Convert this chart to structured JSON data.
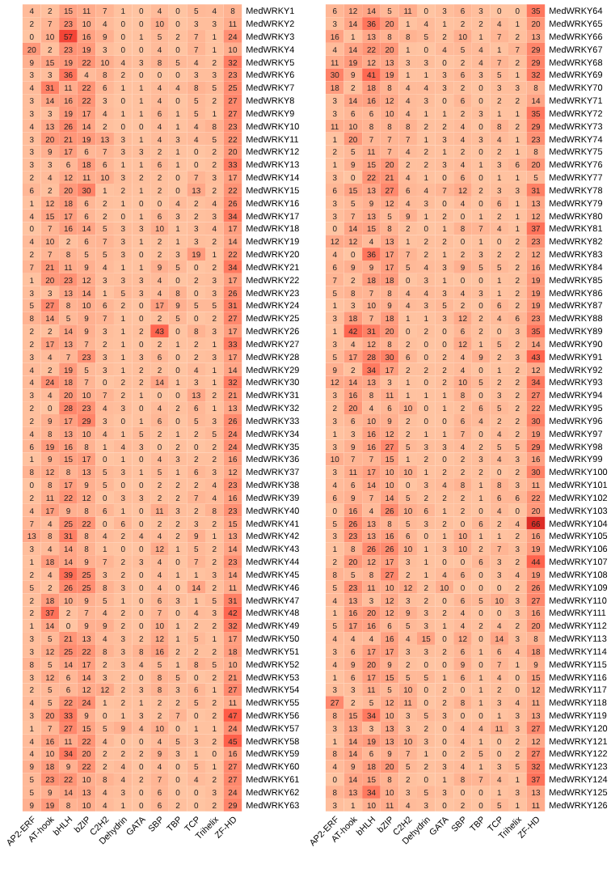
{
  "chart_data": [
    {
      "type": "heatmap",
      "data_labels": true,
      "color": "#de2d26",
      "categories": [
        "AP2-ERF",
        "AT-hook",
        "bHLH",
        "bZIP",
        "C2H2",
        "Dehydrin",
        "GATA",
        "SBP",
        "TBP",
        "TCP",
        "Trihelix",
        "ZF-HD"
      ],
      "y_categories": [
        "MedWRKY1",
        "MedWRKY2",
        "MedWRKY3",
        "MedWRKY4",
        "MedWRKY5",
        "MedWRKY6",
        "MedWRKY7",
        "MedWRKY8",
        "MedWRKY9",
        "MedWRKY10",
        "MedWRKY11",
        "MedWRKY12",
        "MedWRKY13",
        "MedWRKY14",
        "MedWRKY15",
        "MedWRKY16",
        "MedWRKY17",
        "MedWRKY18",
        "MedWRKY19",
        "MedWRKY20",
        "MedWRKY21",
        "MedWRKY22",
        "MedWRKY23",
        "MedWRKY24",
        "MedWRKY25",
        "MedWRKY26",
        "MedWRKY27",
        "MedWRKY28",
        "MedWRKY29",
        "MedWRKY30",
        "MedWRKY31",
        "MedWRKY32",
        "MedWRKY33",
        "MedWRKY34",
        "MedWRKY35",
        "MedWRKY36",
        "MedWRKY37",
        "MedWRKY38",
        "MedWRKY39",
        "MedWRKY40",
        "MedWRKY41",
        "MedWRKY42",
        "MedWRKY43",
        "MedWRKY44",
        "MedWRKY45",
        "MedWRKY46",
        "MedWRKY47",
        "MedWRKY48",
        "MedWRKY49",
        "MedWRKY50",
        "MedWRKY51",
        "MedWRKY52",
        "MedWRKY53",
        "MedWRKY54",
        "MedWRKY55",
        "MedWRKY56",
        "MedWRKY57",
        "MedWRKY58",
        "MedWRKY59",
        "MedWRKY60",
        "MedWRKY61",
        "MedWRKY62",
        "MedWRKY63"
      ],
      "cells": [
        [
          4,
          2,
          15,
          11,
          7,
          1,
          0,
          4,
          0,
          5,
          4,
          8
        ],
        [
          2,
          7,
          23,
          10,
          4,
          0,
          0,
          10,
          0,
          3,
          3,
          11
        ],
        [
          0,
          10,
          57,
          16,
          9,
          0,
          1,
          5,
          2,
          7,
          1,
          24
        ],
        [
          20,
          2,
          23,
          19,
          3,
          0,
          0,
          4,
          0,
          7,
          1,
          10
        ],
        [
          9,
          15,
          19,
          22,
          10,
          4,
          3,
          8,
          5,
          4,
          2,
          32
        ],
        [
          3,
          3,
          36,
          4,
          8,
          2,
          0,
          0,
          0,
          3,
          3,
          23
        ],
        [
          4,
          31,
          11,
          22,
          6,
          1,
          1,
          4,
          4,
          8,
          5,
          25
        ],
        [
          3,
          14,
          16,
          22,
          3,
          0,
          1,
          4,
          0,
          5,
          2,
          27
        ],
        [
          3,
          3,
          19,
          17,
          4,
          1,
          1,
          6,
          1,
          5,
          1,
          27
        ],
        [
          4,
          13,
          26,
          14,
          2,
          0,
          0,
          4,
          1,
          4,
          8,
          23
        ],
        [
          3,
          20,
          21,
          19,
          13,
          3,
          1,
          4,
          3,
          4,
          5,
          22
        ],
        [
          3,
          9,
          17,
          6,
          7,
          3,
          3,
          2,
          1,
          0,
          2,
          20
        ],
        [
          3,
          3,
          6,
          18,
          6,
          1,
          1,
          6,
          1,
          0,
          2,
          33
        ],
        [
          2,
          4,
          12,
          11,
          10,
          3,
          2,
          2,
          0,
          7,
          3,
          17
        ],
        [
          6,
          2,
          20,
          30,
          1,
          2,
          1,
          2,
          0,
          13,
          2,
          22
        ],
        [
          1,
          12,
          18,
          6,
          2,
          1,
          0,
          0,
          4,
          2,
          4,
          26
        ],
        [
          4,
          15,
          17,
          6,
          2,
          0,
          1,
          6,
          3,
          2,
          3,
          34
        ],
        [
          0,
          7,
          16,
          14,
          5,
          3,
          3,
          10,
          1,
          3,
          4,
          17
        ],
        [
          4,
          10,
          2,
          6,
          7,
          3,
          1,
          2,
          1,
          3,
          2,
          14
        ],
        [
          2,
          7,
          8,
          5,
          5,
          3,
          0,
          2,
          3,
          19,
          1,
          22
        ],
        [
          7,
          21,
          11,
          9,
          4,
          1,
          1,
          9,
          5,
          0,
          2,
          34
        ],
        [
          1,
          20,
          23,
          12,
          3,
          3,
          3,
          4,
          0,
          2,
          3,
          17
        ],
        [
          3,
          3,
          13,
          14,
          1,
          5,
          3,
          4,
          8,
          0,
          3,
          26
        ],
        [
          5,
          27,
          8,
          10,
          6,
          2,
          0,
          17,
          9,
          5,
          5,
          31
        ],
        [
          8,
          14,
          5,
          9,
          7,
          1,
          0,
          2,
          5,
          0,
          2,
          27
        ],
        [
          2,
          2,
          14,
          9,
          3,
          1,
          2,
          43,
          0,
          8,
          3,
          17
        ],
        [
          2,
          17,
          13,
          7,
          2,
          1,
          0,
          2,
          1,
          2,
          1,
          33
        ],
        [
          3,
          4,
          7,
          23,
          3,
          1,
          3,
          6,
          0,
          2,
          3,
          17
        ],
        [
          4,
          2,
          19,
          5,
          3,
          1,
          2,
          2,
          0,
          4,
          1,
          14
        ],
        [
          4,
          24,
          18,
          7,
          0,
          2,
          2,
          14,
          1,
          3,
          1,
          32
        ],
        [
          3,
          4,
          20,
          10,
          7,
          2,
          1,
          0,
          0,
          13,
          2,
          21
        ],
        [
          2,
          0,
          28,
          23,
          4,
          3,
          0,
          4,
          2,
          6,
          1,
          13
        ],
        [
          2,
          9,
          17,
          29,
          3,
          0,
          1,
          6,
          0,
          5,
          3,
          26
        ],
        [
          4,
          8,
          13,
          10,
          4,
          1,
          5,
          2,
          1,
          2,
          5,
          24
        ],
        [
          6,
          19,
          16,
          8,
          1,
          4,
          3,
          0,
          2,
          0,
          2,
          24
        ],
        [
          1,
          9,
          15,
          17,
          0,
          1,
          0,
          4,
          3,
          2,
          2,
          16
        ],
        [
          8,
          12,
          8,
          13,
          5,
          3,
          1,
          5,
          1,
          6,
          3,
          12
        ],
        [
          0,
          8,
          17,
          9,
          5,
          0,
          0,
          2,
          2,
          2,
          4,
          23
        ],
        [
          2,
          11,
          22,
          12,
          0,
          3,
          3,
          2,
          2,
          7,
          4,
          16
        ],
        [
          4,
          17,
          9,
          8,
          6,
          1,
          0,
          11,
          3,
          2,
          8,
          23
        ],
        [
          7,
          4,
          25,
          22,
          0,
          6,
          0,
          2,
          2,
          3,
          2,
          15
        ],
        [
          13,
          8,
          31,
          8,
          4,
          2,
          4,
          4,
          2,
          9,
          1,
          13
        ],
        [
          3,
          4,
          14,
          8,
          1,
          0,
          0,
          12,
          1,
          5,
          2,
          14
        ],
        [
          1,
          18,
          14,
          9,
          7,
          2,
          3,
          4,
          0,
          7,
          2,
          23
        ],
        [
          2,
          4,
          39,
          25,
          3,
          2,
          0,
          4,
          1,
          1,
          3,
          14
        ],
        [
          5,
          2,
          26,
          25,
          8,
          3,
          0,
          4,
          0,
          14,
          2,
          11
        ],
        [
          2,
          18,
          10,
          9,
          5,
          1,
          0,
          6,
          3,
          1,
          5,
          31
        ],
        [
          2,
          37,
          2,
          7,
          4,
          2,
          0,
          7,
          0,
          4,
          3,
          42
        ],
        [
          1,
          14,
          0,
          9,
          9,
          2,
          0,
          10,
          1,
          2,
          2,
          32
        ],
        [
          3,
          5,
          21,
          13,
          4,
          3,
          2,
          12,
          1,
          5,
          1,
          17
        ],
        [
          3,
          12,
          25,
          22,
          8,
          3,
          8,
          16,
          2,
          2,
          2,
          18
        ],
        [
          8,
          5,
          14,
          17,
          2,
          3,
          4,
          5,
          1,
          8,
          5,
          10
        ],
        [
          3,
          12,
          6,
          14,
          3,
          2,
          0,
          8,
          5,
          0,
          2,
          21
        ],
        [
          2,
          5,
          6,
          12,
          12,
          2,
          3,
          8,
          3,
          6,
          1,
          27
        ],
        [
          4,
          5,
          22,
          24,
          1,
          2,
          1,
          2,
          2,
          5,
          2,
          11
        ],
        [
          3,
          20,
          33,
          9,
          0,
          1,
          3,
          2,
          7,
          0,
          2,
          47
        ],
        [
          1,
          7,
          27,
          15,
          5,
          9,
          4,
          10,
          0,
          1,
          1,
          24
        ],
        [
          4,
          16,
          11,
          22,
          4,
          0,
          0,
          4,
          5,
          3,
          2,
          45
        ],
        [
          4,
          10,
          34,
          20,
          2,
          2,
          2,
          9,
          3,
          1,
          0,
          16
        ],
        [
          9,
          18,
          9,
          22,
          2,
          4,
          0,
          4,
          0,
          5,
          1,
          27
        ],
        [
          5,
          23,
          22,
          10,
          8,
          4,
          2,
          7,
          0,
          4,
          2,
          27
        ],
        [
          5,
          9,
          14,
          13,
          4,
          3,
          0,
          6,
          0,
          0,
          3,
          24
        ],
        [
          9,
          19,
          8,
          10,
          4,
          1,
          0,
          6,
          2,
          0,
          2,
          29
        ]
      ]
    },
    {
      "type": "heatmap",
      "data_labels": true,
      "color": "#de2d26",
      "categories": [
        "AP2-ERF",
        "AT-hook",
        "bHLH",
        "bZIP",
        "C2H2",
        "Dehydrin",
        "GATA",
        "SBP",
        "TBP",
        "TCP",
        "Trihelix",
        "ZF-HD"
      ],
      "y_categories": [
        "MedWRKY64",
        "MedWRKY65",
        "MedWRKY66",
        "MedWRKY67",
        "MedWRKY68",
        "MedWRKY69",
        "MedWRKY70",
        "MedWRKY71",
        "MedWRKY72",
        "MedWRKY73",
        "MedWRKY74",
        "MedWRKY75",
        "MedWRKY76",
        "MedWRKY77",
        "MedWRKY78",
        "MedWRKY79",
        "MedWRKY80",
        "MedWRKY81",
        "MedWRKY82",
        "MedWRKY83",
        "MedWRKY84",
        "MedWRKY85",
        "MedWRKY86",
        "MedWRKY87",
        "MedWRKY88",
        "MedWRKY89",
        "MedWRKY90",
        "MedWRKY91",
        "MedWRKY92",
        "MedWRKY93",
        "MedWRKY94",
        "MedWRKY95",
        "MedWRKY96",
        "MedWRKY97",
        "MedWRKY98",
        "MedWRKY99",
        "MedWRKY100",
        "MedWRKY101",
        "MedWRKY102",
        "MedWRKY103",
        "MedWRKY104",
        "MedWRKY105",
        "MedWRKY106",
        "MedWRKY107",
        "MedWRKY108",
        "MedWRKY109",
        "MedWRKY110",
        "MedWRKY111",
        "MedWRKY112",
        "MedWRKY113",
        "MedWRKY114",
        "MedWRKY115",
        "MedWRKY116",
        "MedWRKY117",
        "MedWRKY118",
        "MedWRKY119",
        "MedWRKY120",
        "MedWRKY121",
        "MedWRKY122",
        "MedWRKY123",
        "MedWRKY124",
        "MedWRKY125",
        "MedWRKY126"
      ],
      "cells": [
        [
          6,
          12,
          14,
          5,
          11,
          0,
          3,
          6,
          3,
          0,
          0,
          35
        ],
        [
          3,
          14,
          36,
          20,
          1,
          4,
          1,
          2,
          2,
          4,
          1,
          20
        ],
        [
          16,
          1,
          13,
          8,
          8,
          5,
          2,
          10,
          1,
          7,
          2,
          13
        ],
        [
          4,
          14,
          22,
          20,
          1,
          0,
          4,
          5,
          4,
          1,
          7,
          29
        ],
        [
          11,
          19,
          12,
          13,
          3,
          3,
          0,
          2,
          4,
          7,
          2,
          29
        ],
        [
          30,
          9,
          41,
          19,
          1,
          1,
          3,
          6,
          3,
          5,
          1,
          32
        ],
        [
          18,
          2,
          18,
          8,
          4,
          4,
          3,
          2,
          0,
          3,
          3,
          8
        ],
        [
          3,
          14,
          16,
          12,
          4,
          3,
          0,
          6,
          0,
          2,
          2,
          14
        ],
        [
          3,
          6,
          6,
          10,
          4,
          1,
          1,
          2,
          3,
          1,
          1,
          35
        ],
        [
          11,
          10,
          8,
          8,
          8,
          2,
          2,
          4,
          0,
          8,
          2,
          29
        ],
        [
          1,
          20,
          7,
          7,
          7,
          1,
          3,
          4,
          3,
          4,
          1,
          23
        ],
        [
          2,
          5,
          11,
          7,
          4,
          2,
          1,
          2,
          0,
          2,
          1,
          8
        ],
        [
          1,
          9,
          15,
          20,
          2,
          2,
          3,
          4,
          1,
          3,
          6,
          20
        ],
        [
          3,
          0,
          22,
          21,
          4,
          1,
          0,
          6,
          0,
          1,
          1,
          5
        ],
        [
          6,
          15,
          13,
          27,
          6,
          4,
          7,
          12,
          2,
          3,
          3,
          31
        ],
        [
          3,
          5,
          9,
          12,
          4,
          3,
          0,
          4,
          0,
          6,
          1,
          13
        ],
        [
          3,
          7,
          13,
          5,
          9,
          1,
          2,
          0,
          1,
          2,
          1,
          12
        ],
        [
          0,
          14,
          15,
          8,
          2,
          0,
          1,
          8,
          7,
          4,
          1,
          37
        ],
        [
          12,
          12,
          4,
          13,
          1,
          2,
          2,
          0,
          1,
          0,
          2,
          23
        ],
        [
          4,
          0,
          36,
          17,
          7,
          2,
          1,
          2,
          3,
          2,
          2,
          12
        ],
        [
          6,
          9,
          9,
          17,
          5,
          4,
          3,
          9,
          5,
          5,
          2,
          16
        ],
        [
          7,
          2,
          18,
          18,
          0,
          3,
          1,
          0,
          0,
          1,
          2,
          19
        ],
        [
          5,
          8,
          7,
          8,
          4,
          4,
          3,
          4,
          3,
          1,
          2,
          19
        ],
        [
          1,
          3,
          10,
          9,
          4,
          3,
          5,
          2,
          0,
          6,
          2,
          19
        ],
        [
          3,
          18,
          7,
          18,
          1,
          1,
          3,
          12,
          2,
          4,
          6,
          23
        ],
        [
          1,
          42,
          31,
          20,
          0,
          2,
          0,
          6,
          2,
          0,
          3,
          35
        ],
        [
          3,
          4,
          12,
          8,
          2,
          0,
          0,
          12,
          1,
          5,
          2,
          14
        ],
        [
          5,
          17,
          28,
          30,
          6,
          0,
          2,
          4,
          9,
          2,
          3,
          43
        ],
        [
          9,
          2,
          34,
          17,
          2,
          2,
          2,
          4,
          0,
          1,
          2,
          12
        ],
        [
          12,
          14,
          13,
          3,
          1,
          0,
          2,
          10,
          5,
          2,
          2,
          34
        ],
        [
          3,
          16,
          8,
          11,
          1,
          1,
          1,
          8,
          0,
          3,
          2,
          27
        ],
        [
          2,
          20,
          4,
          6,
          10,
          0,
          1,
          2,
          6,
          5,
          2,
          22
        ],
        [
          3,
          6,
          10,
          9,
          2,
          0,
          0,
          6,
          4,
          2,
          2,
          30
        ],
        [
          1,
          3,
          16,
          12,
          2,
          1,
          1,
          7,
          0,
          4,
          2,
          19
        ],
        [
          3,
          9,
          16,
          27,
          5,
          3,
          3,
          4,
          2,
          5,
          5,
          29
        ],
        [
          10,
          7,
          7,
          15,
          1,
          2,
          0,
          2,
          3,
          4,
          3,
          16
        ],
        [
          3,
          11,
          17,
          10,
          10,
          1,
          2,
          2,
          2,
          0,
          2,
          30
        ],
        [
          4,
          6,
          14,
          10,
          0,
          3,
          4,
          8,
          1,
          8,
          3,
          11
        ],
        [
          6,
          9,
          7,
          14,
          5,
          2,
          2,
          2,
          1,
          6,
          6,
          22
        ],
        [
          0,
          16,
          4,
          26,
          10,
          6,
          1,
          2,
          0,
          4,
          0,
          20
        ],
        [
          5,
          26,
          13,
          8,
          5,
          3,
          2,
          0,
          6,
          2,
          4,
          66
        ],
        [
          3,
          23,
          13,
          16,
          6,
          0,
          1,
          10,
          1,
          1,
          2,
          16
        ],
        [
          1,
          8,
          26,
          26,
          10,
          1,
          3,
          10,
          2,
          7,
          3,
          19
        ],
        [
          2,
          20,
          12,
          17,
          3,
          1,
          0,
          0,
          6,
          3,
          2,
          44
        ],
        [
          8,
          5,
          8,
          27,
          2,
          1,
          4,
          6,
          0,
          3,
          4,
          19
        ],
        [
          5,
          23,
          11,
          10,
          12,
          2,
          10,
          0,
          0,
          0,
          2,
          26
        ],
        [
          4,
          13,
          3,
          12,
          3,
          2,
          0,
          6,
          5,
          10,
          3,
          27
        ],
        [
          1,
          16,
          20,
          12,
          9,
          3,
          2,
          4,
          0,
          0,
          3,
          16
        ],
        [
          5,
          17,
          16,
          6,
          5,
          3,
          1,
          4,
          2,
          4,
          2,
          20
        ],
        [
          4,
          4,
          4,
          16,
          4,
          15,
          0,
          12,
          0,
          14,
          3,
          8
        ],
        [
          3,
          6,
          17,
          17,
          3,
          3,
          2,
          6,
          1,
          6,
          4,
          18
        ],
        [
          4,
          9,
          20,
          9,
          2,
          0,
          0,
          9,
          0,
          7,
          1,
          9
        ],
        [
          1,
          6,
          17,
          15,
          5,
          5,
          1,
          6,
          1,
          4,
          0,
          15
        ],
        [
          3,
          3,
          11,
          5,
          10,
          0,
          2,
          0,
          1,
          2,
          0,
          12
        ],
        [
          27,
          2,
          5,
          12,
          11,
          0,
          2,
          8,
          1,
          3,
          4,
          11
        ],
        [
          8,
          15,
          34,
          10,
          3,
          5,
          3,
          0,
          0,
          1,
          3,
          13
        ],
        [
          3,
          13,
          3,
          13,
          3,
          2,
          0,
          4,
          4,
          11,
          3,
          27
        ],
        [
          1,
          14,
          19,
          13,
          10,
          3,
          0,
          4,
          1,
          0,
          2,
          12
        ],
        [
          8,
          14,
          6,
          9,
          7,
          1,
          0,
          2,
          5,
          0,
          2,
          27
        ],
        [
          4,
          9,
          18,
          20,
          5,
          2,
          3,
          4,
          1,
          3,
          5,
          32
        ],
        [
          0,
          14,
          15,
          8,
          2,
          0,
          1,
          8,
          7,
          4,
          1,
          37
        ],
        [
          8,
          13,
          34,
          10,
          3,
          5,
          3,
          0,
          0,
          1,
          3,
          13
        ],
        [
          3,
          1,
          10,
          11,
          4,
          3,
          0,
          2,
          0,
          5,
          1,
          11
        ]
      ]
    }
  ]
}
